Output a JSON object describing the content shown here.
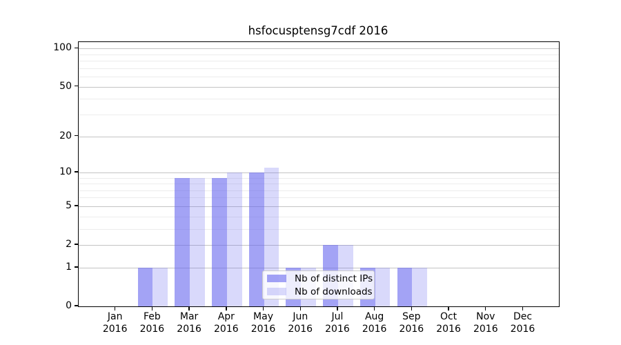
{
  "title": "hsfocusptensg7cdf 2016",
  "chart_data": {
    "type": "bar",
    "title": "hsfocusptensg7cdf 2016",
    "x_categories": [
      "Jan",
      "Feb",
      "Mar",
      "Apr",
      "May",
      "Jun",
      "Jul",
      "Aug",
      "Sep",
      "Oct",
      "Nov",
      "Dec"
    ],
    "x_year": "2016",
    "series": [
      {
        "name": "Nb of distinct IPs",
        "color": "rgba(102,102,238,0.6)",
        "values": [
          0,
          1,
          9,
          9,
          10,
          1,
          2,
          1,
          1,
          0,
          0,
          0
        ]
      },
      {
        "name": "Nb of downloads",
        "color": "rgba(102,102,238,0.25)",
        "values": [
          0,
          1,
          9,
          10,
          11,
          1,
          2,
          1,
          1,
          0,
          0,
          0
        ]
      }
    ],
    "y_axis": {
      "scale": "log10(value+1)",
      "major_ticks": [
        0,
        1,
        2,
        5,
        10,
        20,
        50,
        100
      ],
      "minor_gridlines": [
        3,
        4,
        6,
        7,
        8,
        9,
        30,
        40,
        60,
        70,
        80,
        90
      ],
      "top_value": 113
    },
    "legend": {
      "position": "lower-center",
      "entries": [
        "Nb of distinct IPs",
        "Nb of downloads"
      ]
    },
    "grid": {
      "major_color": "#c3c3c3",
      "minor_color": "#ececec"
    }
  }
}
